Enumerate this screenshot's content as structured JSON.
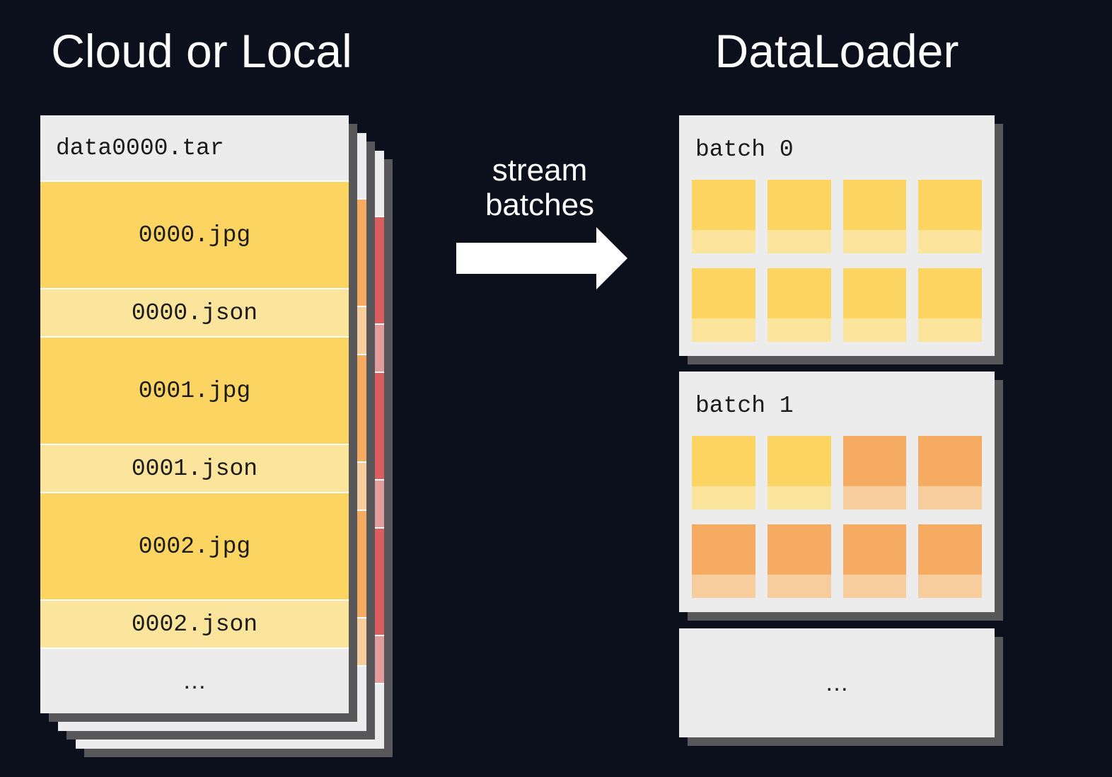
{
  "colors": {
    "background": "#0b101c",
    "card-bg": "#ececec",
    "row-gap": "#ffffff",
    "shadow": "#58585a",
    "ink": "#1b1b1b",
    "title": "#ffffff",
    "arrow": "#ffffff",
    "yellow": "#fcd462",
    "yellow-light": "#fbe49c",
    "orange": "#f5ac62",
    "orange-light": "#f8cd9e",
    "red": "#db5e5e",
    "red-light": "#e39c9c"
  },
  "left": {
    "title": "Cloud or Local",
    "front_card": {
      "header": "data0000.tar",
      "rows": [
        {
          "label": "0000.jpg",
          "kind": "jpg",
          "palette": "yellow"
        },
        {
          "label": "0000.json",
          "kind": "json",
          "palette": "yellow"
        },
        {
          "label": "0001.jpg",
          "kind": "jpg",
          "palette": "yellow"
        },
        {
          "label": "0001.json",
          "kind": "json",
          "palette": "yellow"
        },
        {
          "label": "0002.jpg",
          "kind": "jpg",
          "palette": "yellow"
        },
        {
          "label": "0002.json",
          "kind": "json",
          "palette": "yellow"
        }
      ],
      "footer": "…"
    },
    "behind_cards": [
      {
        "palette": "orange"
      },
      {
        "palette": "red"
      }
    ]
  },
  "arrow": {
    "label_lines": [
      "stream",
      "batches"
    ]
  },
  "right": {
    "title": "DataLoader",
    "batches": [
      {
        "label": "batch 0",
        "tiles": [
          [
            "yellow",
            "yellow",
            "yellow",
            "yellow"
          ],
          [
            "yellow",
            "yellow",
            "yellow",
            "yellow"
          ]
        ]
      },
      {
        "label": "batch 1",
        "tiles": [
          [
            "yellow",
            "yellow",
            "orange",
            "orange"
          ],
          [
            "orange",
            "orange",
            "orange",
            "orange"
          ]
        ]
      }
    ],
    "more_card": {
      "label": "…"
    }
  }
}
